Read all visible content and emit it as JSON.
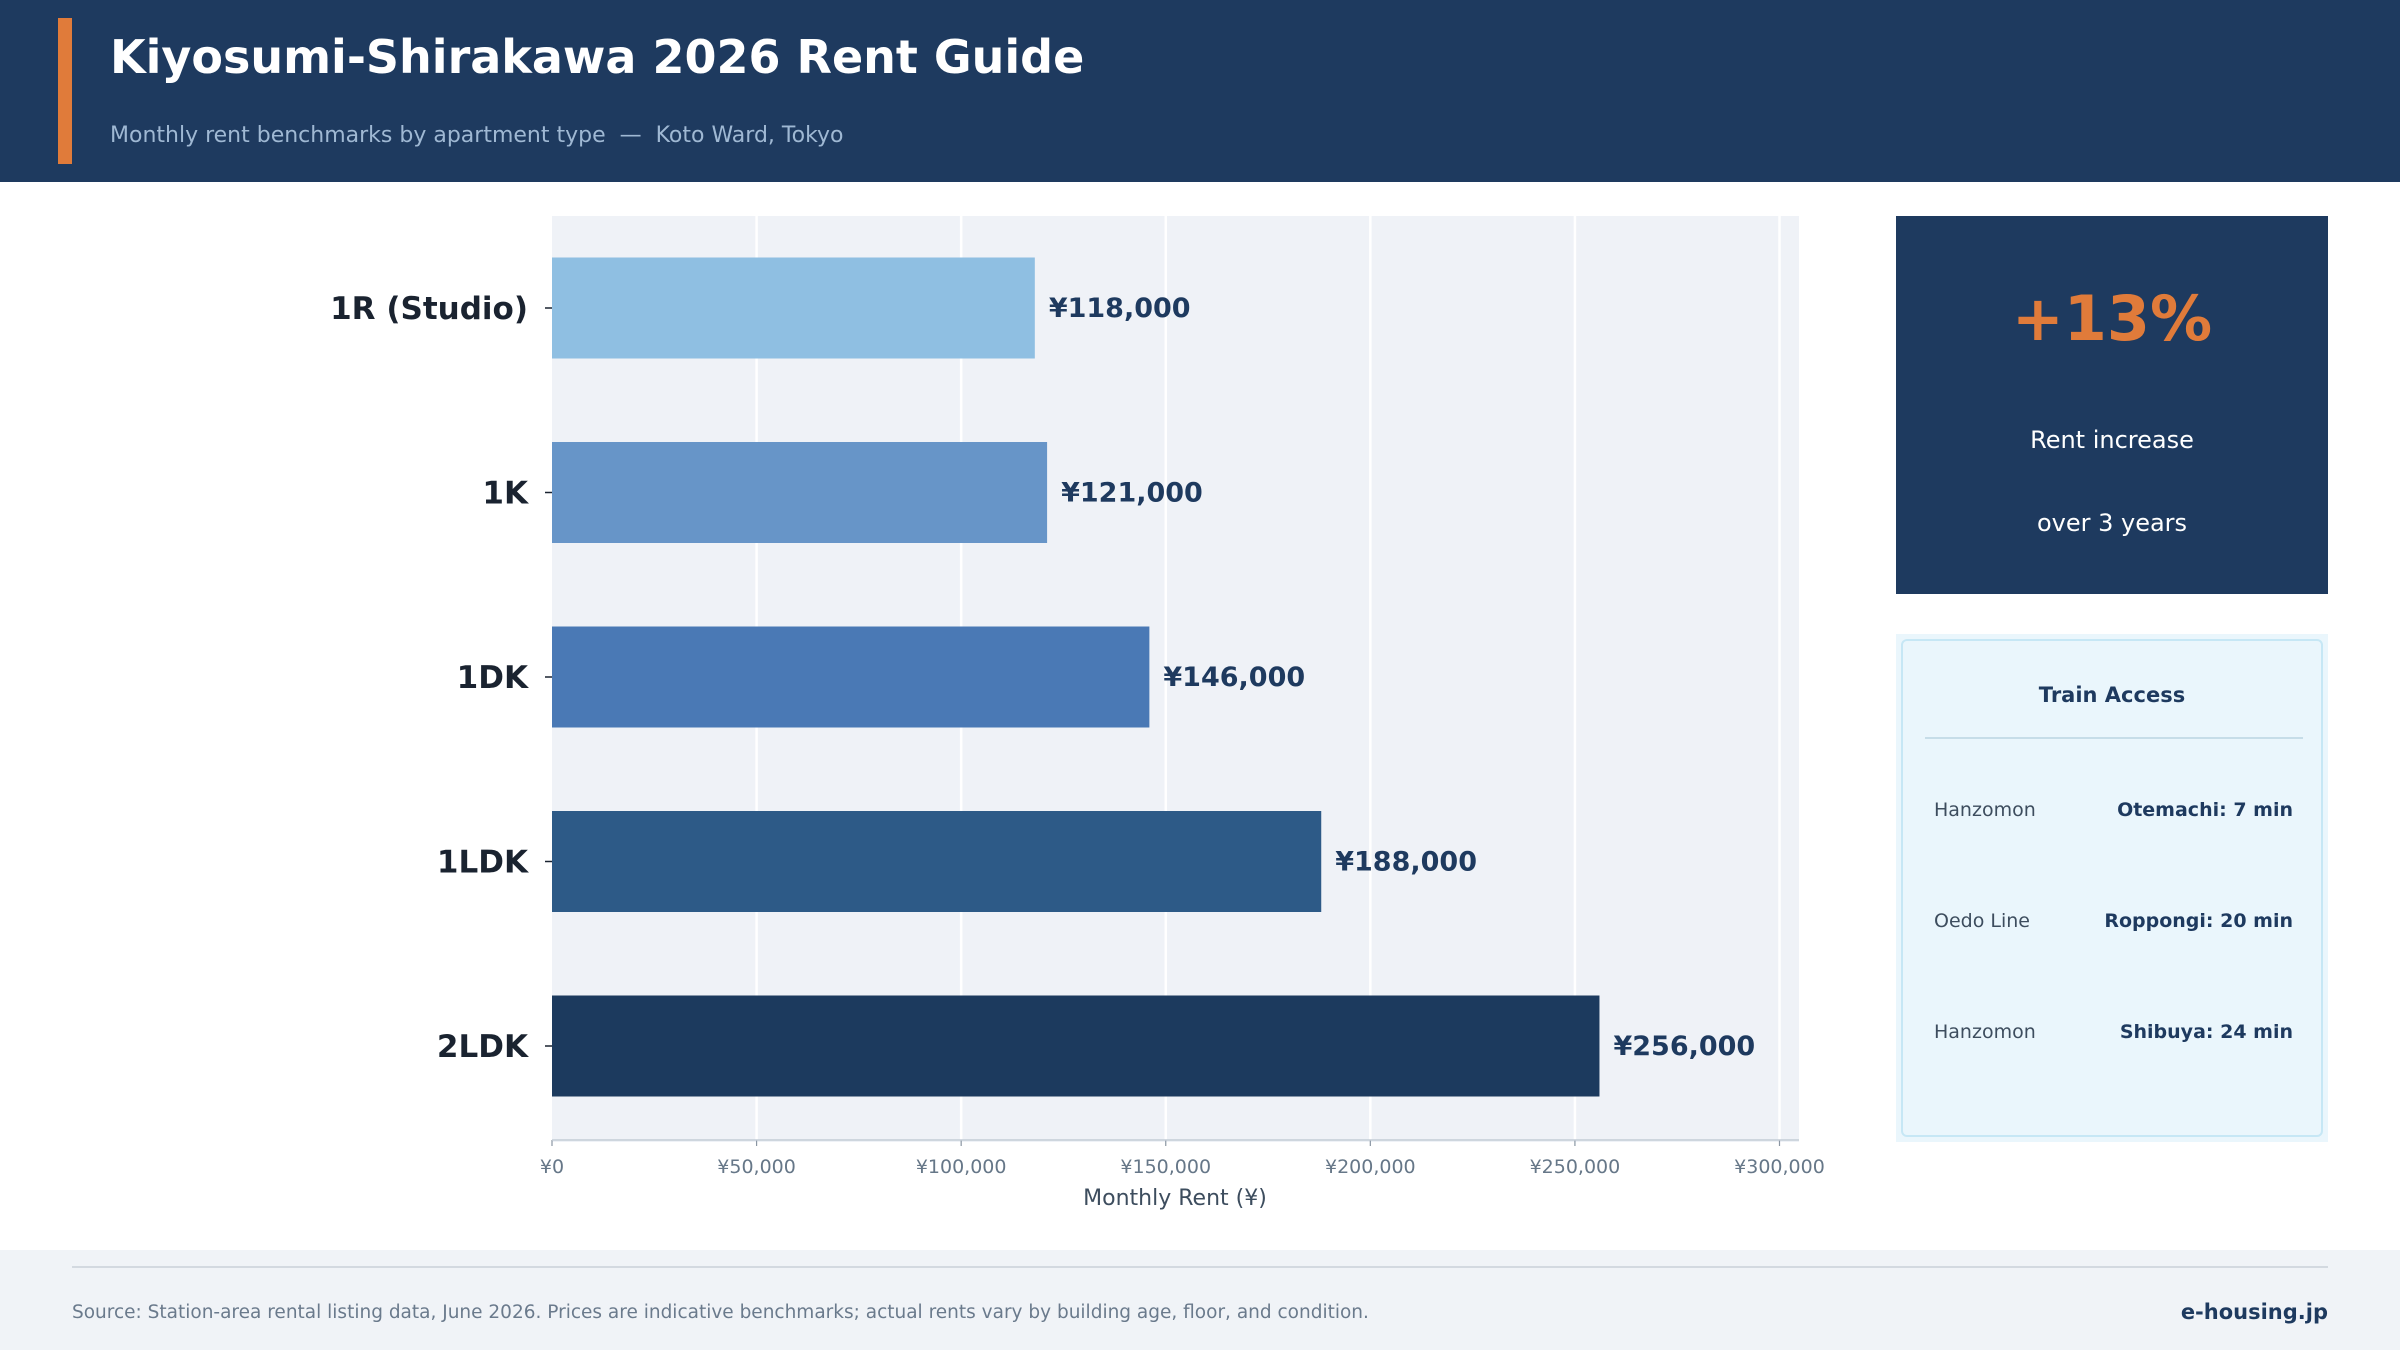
{
  "header": {
    "title": "Kiyosumi-Shirakawa 2026 Rent Guide",
    "subtitle": "Monthly rent benchmarks by apartment type  —  Koto Ward, Tokyo"
  },
  "chart_data": {
    "type": "bar",
    "orientation": "horizontal",
    "title": "",
    "categories": [
      "1R (Studio)",
      "1K",
      "1DK",
      "1LDK",
      "2LDK"
    ],
    "values": [
      118000,
      121000,
      146000,
      188000,
      256000
    ],
    "value_labels": [
      "¥118,000",
      "¥121,000",
      "¥146,000",
      "¥188,000",
      "¥256,000"
    ],
    "bar_colors": [
      "#8fbfe2",
      "#6795c8",
      "#4a79b5",
      "#2d5a87",
      "#1c3a5e"
    ],
    "xlabel": "Monthly Rent (¥)",
    "ylabel": "",
    "xlim": [
      0,
      305000
    ],
    "x_ticks": [
      0,
      50000,
      100000,
      150000,
      200000,
      250000,
      300000
    ],
    "x_tick_labels": [
      "¥0",
      "¥50,000",
      "¥100,000",
      "¥150,000",
      "¥200,000",
      "¥250,000",
      "¥300,000"
    ],
    "grid": "vertical",
    "plot_background": "#eff2f7"
  },
  "stat_card": {
    "value": "+13%",
    "line1": "Rent increase",
    "line2": "over 3 years",
    "value_color": "#e07b3a"
  },
  "train_access": {
    "title": "Train Access",
    "rows": [
      {
        "line": "Hanzomon",
        "destination": "Otemachi: 7 min"
      },
      {
        "line": "Oedo Line",
        "destination": "Roppongi: 20 min"
      },
      {
        "line": "Hanzomon",
        "destination": "Shibuya: 24 min"
      }
    ]
  },
  "footer": {
    "source": "Source: Station-area rental listing data, June 2026. Prices are indicative benchmarks; actual rents vary by building age, floor, and condition.",
    "brand": "e-housing.jp"
  },
  "colors": {
    "header_bg": "#1e3a5f",
    "accent": "#e07b3a"
  }
}
